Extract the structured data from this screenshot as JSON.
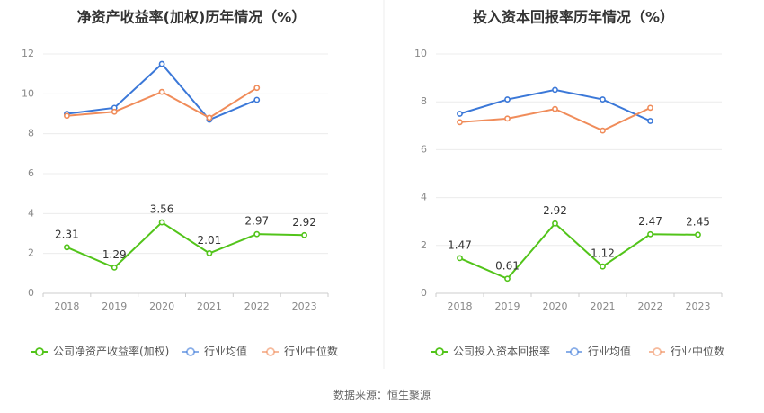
{
  "chart_data": [
    {
      "type": "line",
      "title": "净资产收益率(加权)历年情况（%）",
      "categories": [
        "2018",
        "2019",
        "2020",
        "2021",
        "2022",
        "2023"
      ],
      "ylim": [
        0,
        12
      ],
      "yticks": [
        0,
        2,
        4,
        6,
        8,
        10,
        12
      ],
      "grid": true,
      "legend_position": "bottom",
      "series": [
        {
          "name": "公司净资产收益率(加权)",
          "color": "#52c41a",
          "values": [
            2.31,
            1.29,
            3.56,
            2.01,
            2.97,
            2.92
          ],
          "labels": [
            "2.31",
            "1.29",
            "3.56",
            "2.01",
            "2.97",
            "2.92"
          ]
        },
        {
          "name": "行业均值",
          "color": "#3b78d8",
          "values": [
            9.0,
            9.3,
            11.5,
            8.7,
            9.7,
            null
          ]
        },
        {
          "name": "行业中位数",
          "color": "#f08c5a",
          "values": [
            8.9,
            9.1,
            10.1,
            8.8,
            10.3,
            null
          ]
        }
      ]
    },
    {
      "type": "line",
      "title": "投入资本回报率历年情况（%）",
      "categories": [
        "2018",
        "2019",
        "2020",
        "2021",
        "2022",
        "2023"
      ],
      "ylim": [
        0,
        10
      ],
      "yticks": [
        0,
        2,
        4,
        6,
        8,
        10
      ],
      "grid": true,
      "legend_position": "bottom",
      "series": [
        {
          "name": "公司投入资本回报率",
          "color": "#52c41a",
          "values": [
            1.47,
            0.61,
            2.92,
            1.12,
            2.47,
            2.45
          ],
          "labels": [
            "1.47",
            "0.61",
            "2.92",
            "1.12",
            "2.47",
            "2.45"
          ]
        },
        {
          "name": "行业均值",
          "color": "#3b78d8",
          "values": [
            7.5,
            8.1,
            8.5,
            8.1,
            7.2,
            null
          ]
        },
        {
          "name": "行业中位数",
          "color": "#f08c5a",
          "values": [
            7.15,
            7.3,
            7.7,
            6.8,
            7.75,
            null
          ]
        }
      ]
    }
  ],
  "footer": "数据来源：恒生聚源"
}
